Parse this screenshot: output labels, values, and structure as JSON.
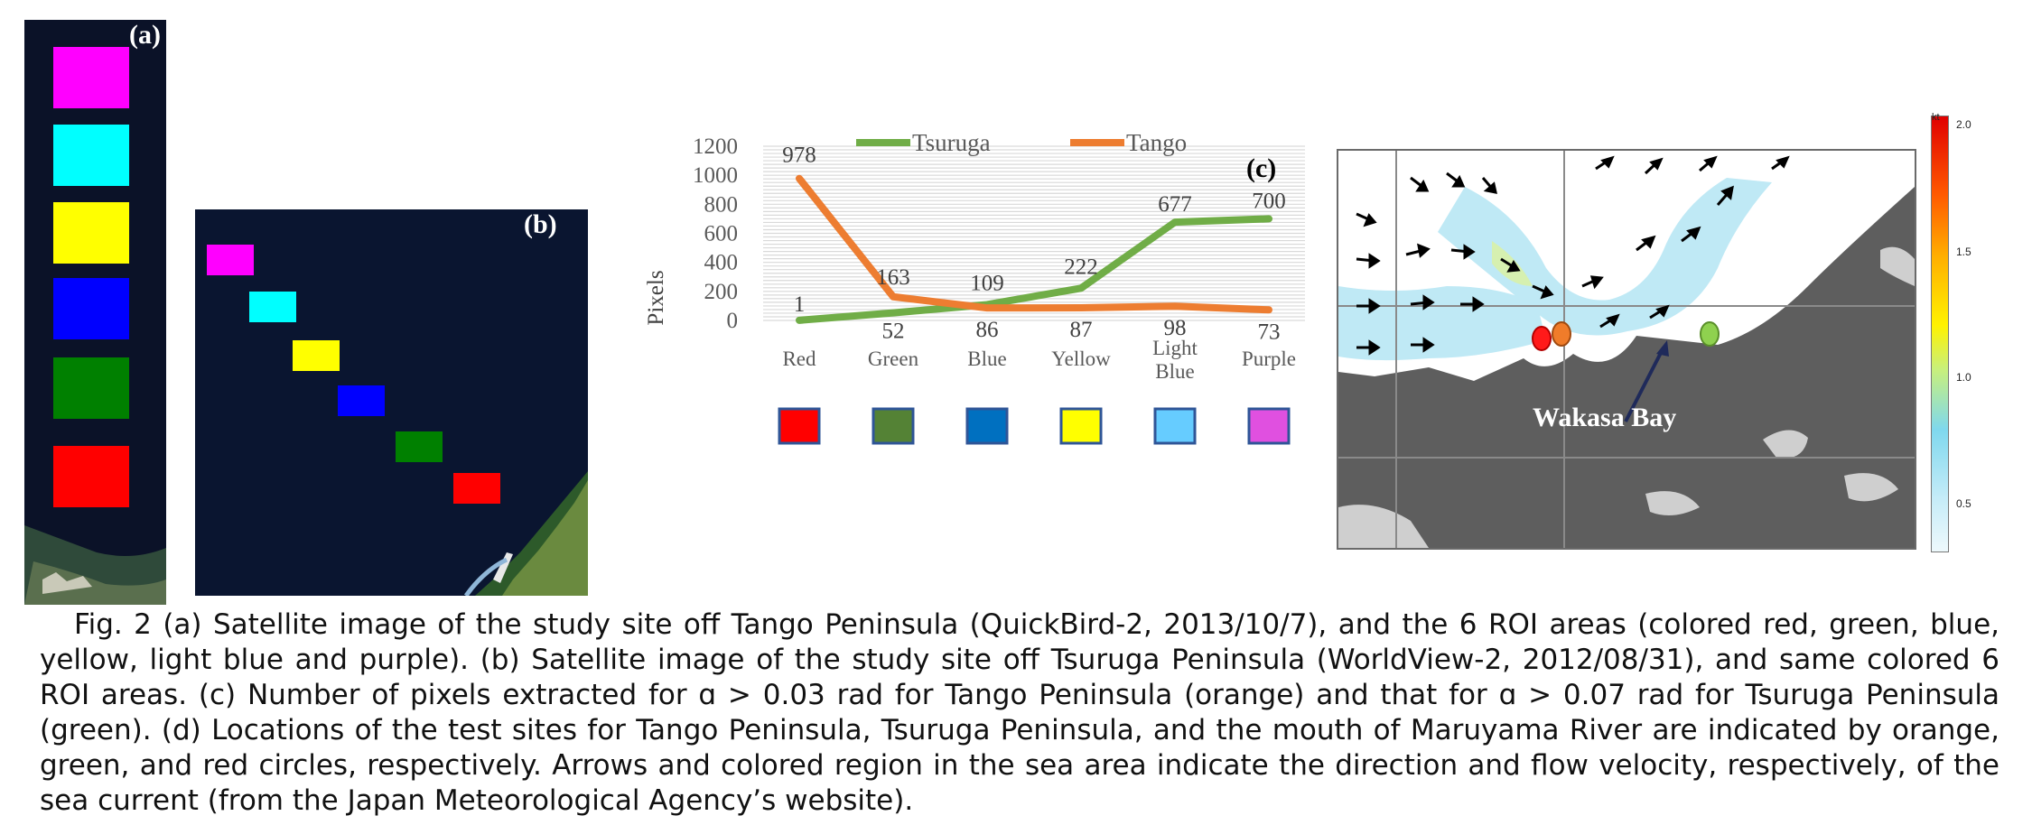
{
  "panels": {
    "a_label": "(a)",
    "b_label": "(b)",
    "c_label": "(c)",
    "d_label": "(d)"
  },
  "roi_colors": {
    "magenta": "#ff00ff",
    "cyan": "#00ffff",
    "yellow": "#ffff00",
    "blue": "#0000ff",
    "green": "#008000",
    "red": "#ff0000"
  },
  "chart_data": {
    "type": "line",
    "categories": [
      "Red",
      "Green",
      "Blue",
      "Yellow",
      "Light Blue",
      "Purple"
    ],
    "series": [
      {
        "name": "Tsuruga",
        "color": "#70ad47",
        "values": [
          1,
          52,
          109,
          222,
          677,
          700
        ]
      },
      {
        "name": "Tango",
        "color": "#ed7d31",
        "values": [
          978,
          163,
          86,
          87,
          98,
          73
        ]
      }
    ],
    "ylabel": "Pixels",
    "ylim": [
      0,
      1200
    ],
    "yticks": [
      0,
      200,
      400,
      600,
      800,
      1000,
      1200
    ],
    "grid": true,
    "legend_position": "top",
    "category_swatches": [
      "#ff0000",
      "#548235",
      "#0070c0",
      "#ffff00",
      "#66ccff",
      "#e050e0"
    ]
  },
  "map": {
    "place_label": "Wakasa Bay",
    "markers": [
      {
        "meaning": "Maruyama River mouth",
        "color": "#ff1a1a"
      },
      {
        "meaning": "Tango Peninsula",
        "color": "#f07c2a"
      },
      {
        "meaning": "Tsuruga Peninsula",
        "color": "#8fd14f"
      }
    ],
    "colorbar": {
      "unit": "kt",
      "ticks": [
        "2.0",
        "1.5",
        "1.0",
        "0.5"
      ]
    }
  },
  "caption": "Fig. 2 (a) Satellite image of the study site off Tango Peninsula (QuickBird-2, 2013/10/7), and the 6 ROI areas (colored red, green, blue, yellow, light blue and purple). (b) Satellite image of the study site off Tsuruga Peninsula (WorldView-2, 2012/08/31), and same colored 6 ROI areas. (c) Number of pixels extracted for ɑ > 0.03 rad for Tango Peninsula (orange) and that for ɑ > 0.07 rad for Tsuruga Peninsula (green). (d) Locations of the test sites for Tango Peninsula, Tsuruga Peninsula, and the mouth of Maruyama River are indicated by orange, green, and red circles, respectively. Arrows and colored region in the sea area indicate the direction and flow velocity, respectively, of the sea current (from the Japan Meteorological Agency’s website)."
}
